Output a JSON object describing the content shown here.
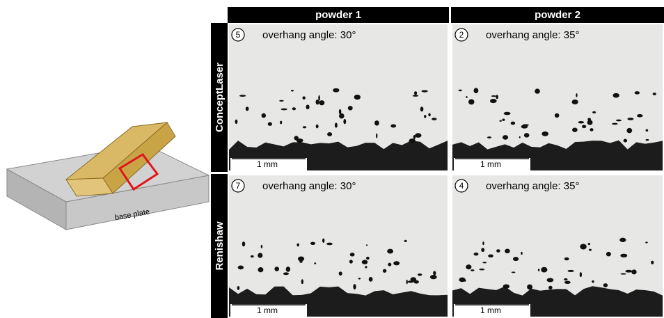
{
  "figure": {
    "diagram": {
      "label": "base plate"
    },
    "columns": [
      "powder 1",
      "powder 2"
    ],
    "rows": [
      "ConceptLaser",
      "Renishaw"
    ],
    "panels": [
      [
        {
          "number": "5",
          "title": "overhang angle: 30°",
          "scale": "1 mm"
        },
        {
          "number": "2",
          "title": "overhang angle: 35°",
          "scale": "1 mm"
        }
      ],
      [
        {
          "number": "7",
          "title": "overhang angle: 30°",
          "scale": "1 mm"
        },
        {
          "number": "4",
          "title": "overhang angle: 35°",
          "scale": "1 mm"
        }
      ]
    ]
  }
}
